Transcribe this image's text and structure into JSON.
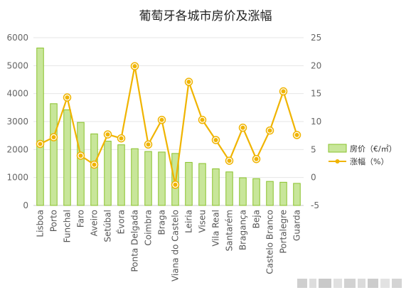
{
  "chart_data": {
    "type": "bar",
    "title": "葡萄牙各城市房价及涨幅",
    "categories": [
      "Lisboa",
      "Porto",
      "Funchal",
      "Faro",
      "Aveiro",
      "Setúbal",
      "Évora",
      "Ponta Delgada",
      "Coimbra",
      "Braga",
      "Viana do Castelo",
      "Leiria",
      "Viseu",
      "Vila Real",
      "Santarém",
      "Bragança",
      "Beja",
      "Castelo Branco",
      "Portalegre",
      "Guarda"
    ],
    "series": [
      {
        "name": "房价（€/㎡）",
        "type": "bar",
        "axis": "left",
        "color": "#9acd32",
        "values": [
          5630,
          3640,
          3420,
          2970,
          2560,
          2300,
          2170,
          2030,
          1930,
          1910,
          1860,
          1540,
          1500,
          1310,
          1200,
          990,
          960,
          860,
          830,
          790
        ]
      },
      {
        "name": "涨幅（%）",
        "type": "line",
        "axis": "right",
        "color": "#f0b400",
        "values": [
          6.0,
          7.2,
          14.3,
          3.9,
          2.3,
          7.7,
          7.0,
          19.9,
          5.9,
          10.3,
          -1.3,
          17.1,
          10.3,
          6.7,
          3.0,
          8.9,
          3.3,
          8.4,
          15.4,
          7.6
        ]
      }
    ],
    "y_left": {
      "range": [
        0,
        6000
      ],
      "ticks": [
        0,
        1000,
        2000,
        3000,
        4000,
        5000,
        6000
      ]
    },
    "y_right": {
      "range": [
        -5,
        25
      ],
      "ticks": [
        -5,
        0,
        5,
        10,
        15,
        20,
        25
      ]
    },
    "grid": true,
    "legend_position": "right"
  }
}
